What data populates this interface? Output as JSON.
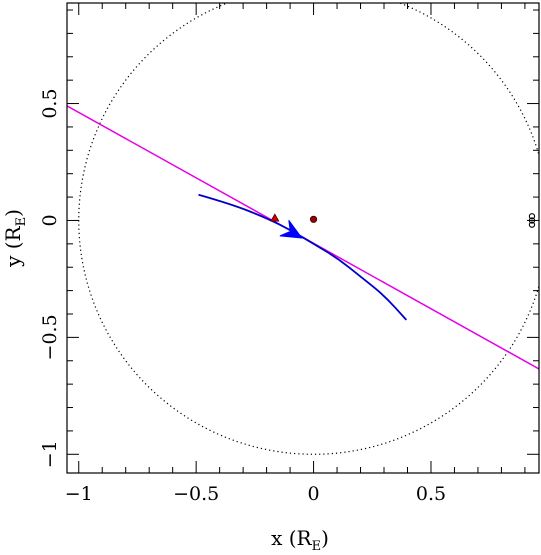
{
  "chart_data": {
    "type": "scatter",
    "xlabel": "x (R",
    "xlabel_sub": "E",
    "xlabel_close": ")",
    "ylabel": "y (R",
    "ylabel_sub": "E",
    "ylabel_close": ")",
    "xlim": [
      -1.05,
      0.96
    ],
    "ylim": [
      -1.08,
      0.93
    ],
    "xticks": {
      "major": [
        -1,
        -0.5,
        0,
        0.5
      ],
      "labels": [
        "−1",
        "−0.5",
        "0",
        "0.5"
      ],
      "minor_step": 0.1
    },
    "yticks": {
      "major": [
        -1,
        -0.5,
        0,
        0.5
      ],
      "labels": [
        "−1",
        "−0.5",
        "0",
        "0.5"
      ],
      "minor_step": 0.1
    },
    "grid": false,
    "circle": {
      "cx": 0,
      "cy": 0,
      "r": 1,
      "style": "dotted",
      "color": "#000000"
    },
    "line": {
      "color": "#e600e6",
      "points": [
        [
          -1.05,
          0.49
        ],
        [
          0.96,
          -0.635
        ]
      ]
    },
    "curve": {
      "color": "#0000cc",
      "points": [
        [
          -0.49,
          0.11
        ],
        [
          -0.35,
          0.07
        ],
        [
          -0.2,
          0.01
        ],
        [
          -0.1,
          -0.04
        ],
        [
          0.0,
          -0.1
        ],
        [
          0.1,
          -0.16
        ],
        [
          0.2,
          -0.24
        ],
        [
          0.3,
          -0.32
        ],
        [
          0.395,
          -0.425
        ]
      ]
    },
    "arrow": {
      "color": "#0000ff",
      "tip": [
        -0.05,
        -0.075
      ],
      "from": [
        -0.12,
        -0.035
      ]
    },
    "markers": [
      {
        "x": -0.165,
        "y": 0.01,
        "shape": "triangle",
        "color": "#cc0000"
      },
      {
        "x": 0.0,
        "y": 0.005,
        "shape": "dot",
        "color": "#990000"
      },
      {
        "x": 0.93,
        "y": 0.018,
        "shape": "open-circle",
        "color": "#000000"
      },
      {
        "x": 0.93,
        "y": 0.0,
        "shape": "open-circle",
        "color": "#000000"
      },
      {
        "x": 0.93,
        "y": -0.018,
        "shape": "open-circle",
        "color": "#000000"
      }
    ]
  }
}
